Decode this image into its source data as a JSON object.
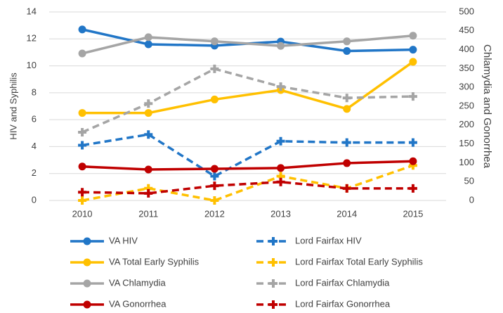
{
  "chart_data": {
    "type": "line",
    "categories": [
      "2010",
      "2011",
      "2012",
      "2013",
      "2014",
      "2015"
    ],
    "y_label": "HIV and Syphilis",
    "y2_label": "Chlamydia and Gonorrhea",
    "ylim": [
      0,
      14
    ],
    "yticks": [
      0,
      2,
      4,
      6,
      8,
      10,
      12,
      14
    ],
    "y2lim": [
      0,
      500
    ],
    "y2ticks": [
      0,
      50,
      100,
      150,
      200,
      250,
      300,
      350,
      400,
      450,
      500
    ],
    "grid": true,
    "series": [
      {
        "name": "VA HIV",
        "color": "#2176c7",
        "style": "solid",
        "marker": "circle",
        "values": [
          12.7,
          11.6,
          11.5,
          11.8,
          11.1,
          11.2
        ]
      },
      {
        "name": "Lord Fairfax HIV",
        "color": "#2176c7",
        "style": "dashed",
        "marker": "plus",
        "values": [
          4.1,
          4.9,
          1.8,
          4.4,
          4.3,
          4.3
        ]
      },
      {
        "name": "VA Total Early Syphilis",
        "color": "#ffc000",
        "style": "solid",
        "marker": "circle",
        "values": [
          6.5,
          6.5,
          7.5,
          8.2,
          6.8,
          10.3
        ]
      },
      {
        "name": "Lord Fairfax Total Early Syphilis",
        "color": "#ffc000",
        "style": "dashed",
        "marker": "plus",
        "values": [
          0,
          0.9,
          0,
          1.8,
          0.9,
          2.6
        ]
      },
      {
        "name": "VA Chlamydia",
        "color": "#a5a5a5",
        "style": "solid",
        "marker": "circle",
        "axis": "y2",
        "values": [
          390,
          433,
          422,
          410,
          422,
          437
        ]
      },
      {
        "name": "Lord Fairfax Chlamydia",
        "color": "#a5a5a5",
        "style": "dashed",
        "marker": "plus",
        "axis": "y2",
        "values": [
          181,
          257,
          349,
          302,
          272,
          276
        ]
      },
      {
        "name": "VA Gonorrhea",
        "color": "#c00000",
        "style": "solid",
        "marker": "circle",
        "axis": "y2",
        "values": [
          90,
          82,
          84,
          86,
          99,
          104
        ]
      },
      {
        "name": "Lord Fairfax Gonorrhea",
        "color": "#c00000",
        "style": "dashed",
        "marker": "plus",
        "axis": "y2",
        "values": [
          22,
          19,
          39,
          49,
          32,
          32
        ]
      }
    ]
  }
}
